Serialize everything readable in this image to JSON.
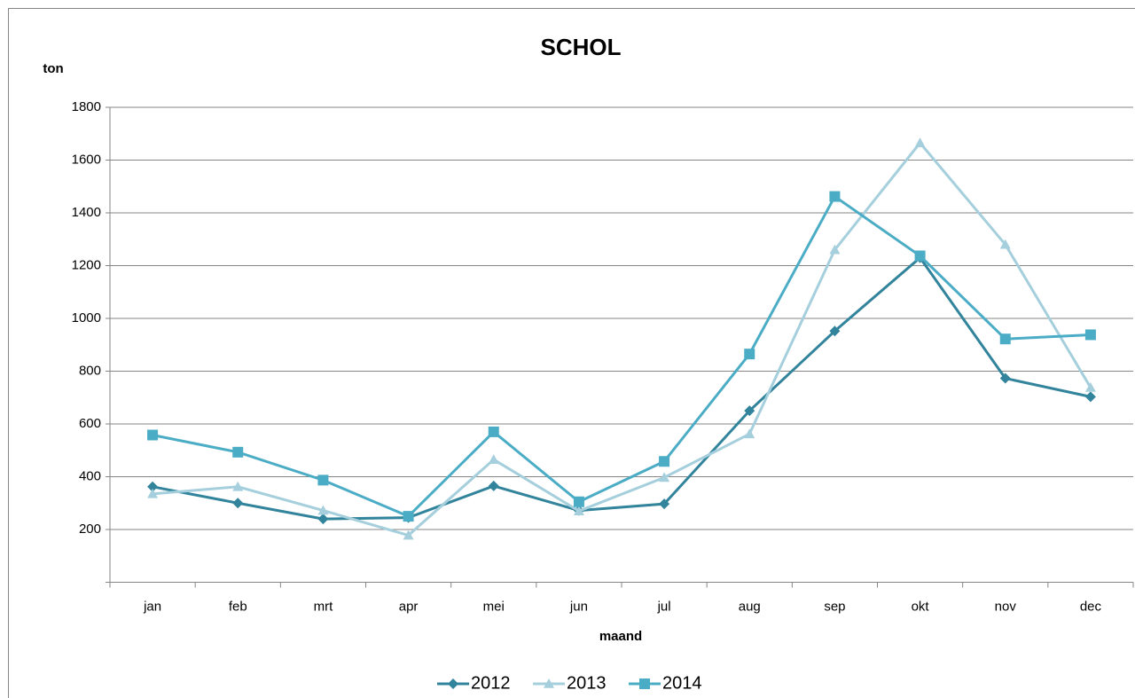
{
  "chart_data": {
    "type": "line",
    "title": "SCHOL",
    "y_label": "ton",
    "x_label": "maand",
    "categories": [
      "jan",
      "feb",
      "mrt",
      "apr",
      "mei",
      "jun",
      "jul",
      "aug",
      "sep",
      "okt",
      "nov",
      "dec"
    ],
    "series": [
      {
        "name": "2012",
        "color": "#31849b",
        "marker": "diamond",
        "values": [
          362,
          300,
          240,
          245,
          365,
          272,
          297,
          650,
          952,
          1230,
          773,
          703
        ]
      },
      {
        "name": "2013",
        "color": "#a5cfdc",
        "marker": "triangle",
        "values": [
          335,
          362,
          272,
          178,
          465,
          270,
          397,
          562,
          1260,
          1665,
          1280,
          738
        ]
      },
      {
        "name": "2014",
        "color": "#4bacc6",
        "marker": "square",
        "values": [
          558,
          493,
          387,
          250,
          570,
          305,
          458,
          865,
          1462,
          1237,
          922,
          938
        ]
      }
    ],
    "ylim": [
      0,
      1800
    ],
    "yticks": [
      200,
      400,
      600,
      800,
      1000,
      1200,
      1400,
      1600,
      1800
    ],
    "grid": true,
    "legend": "bottom"
  }
}
